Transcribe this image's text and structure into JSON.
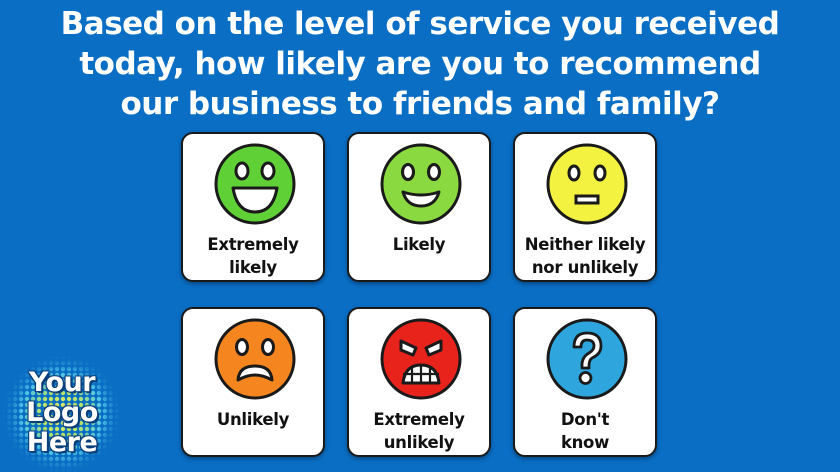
{
  "question": {
    "lines": [
      "Based on the level of service you received",
      "today, how likely are you to recommend",
      "our business to friends and family?"
    ]
  },
  "options": [
    {
      "label_lines": [
        "Extremely",
        "likely"
      ],
      "face": "very-happy-face-icon",
      "color": "#5fd136"
    },
    {
      "label_lines": [
        "Likely"
      ],
      "face": "happy-face-icon",
      "color": "#8bd940"
    },
    {
      "label_lines": [
        "Neither likely",
        "nor unlikely"
      ],
      "face": "neutral-face-icon",
      "color": "#f4f240"
    },
    {
      "label_lines": [
        "Unlikely"
      ],
      "face": "sad-face-icon",
      "color": "#f5861f"
    },
    {
      "label_lines": [
        "Extremely",
        "unlikely"
      ],
      "face": "angry-face-icon",
      "color": "#e8231c"
    },
    {
      "label_lines": [
        "Don't",
        "know"
      ],
      "face": "question-mark-icon",
      "color": "#2ea6dd"
    }
  ],
  "logo": {
    "lines": [
      "Your",
      "Logo",
      "Here"
    ]
  },
  "colors": {
    "background": "#0a6ec4",
    "card_bg": "#ffffff",
    "card_border": "#1a1a1a"
  }
}
